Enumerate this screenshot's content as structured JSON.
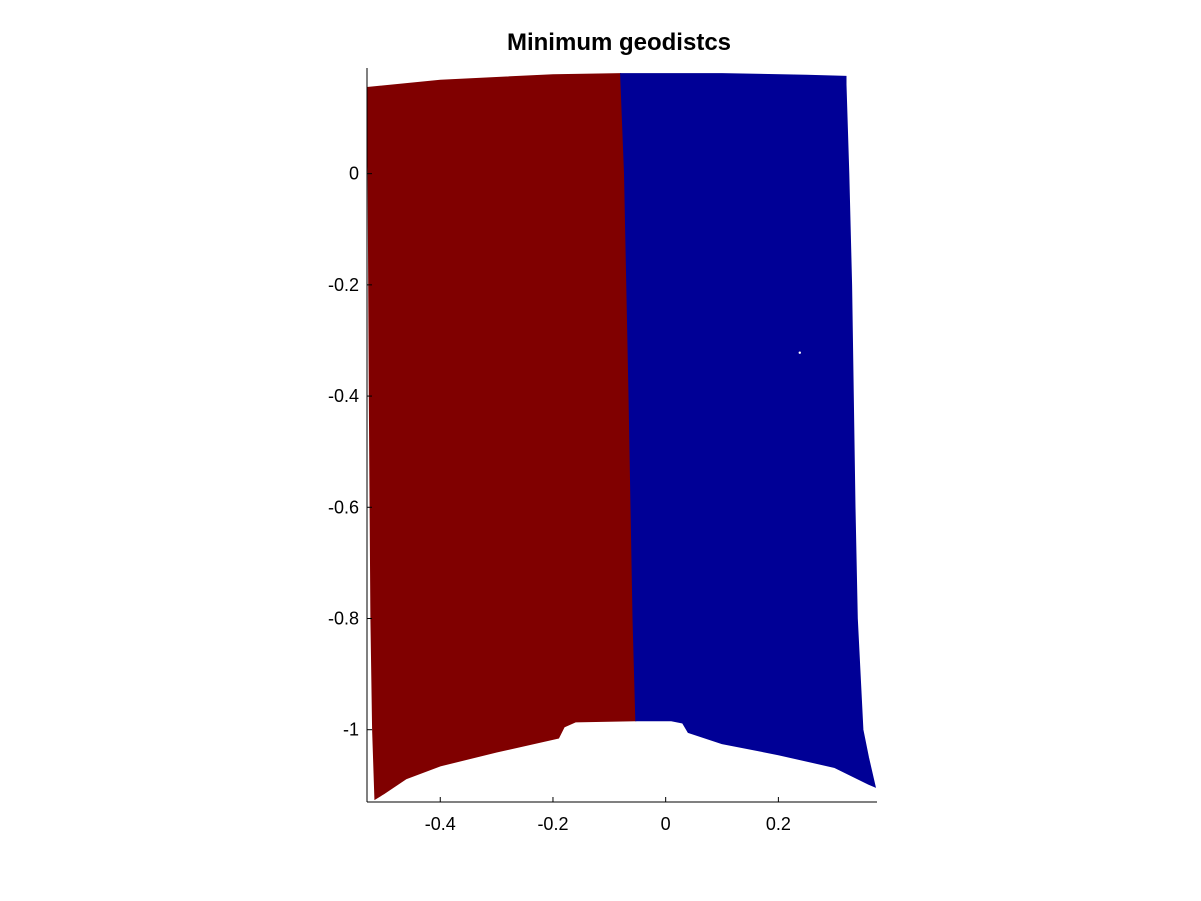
{
  "chart_data": {
    "type": "area",
    "title": "Minimum geodistcs",
    "xlabel": "",
    "ylabel": "",
    "xlim": [
      -0.53,
      0.375
    ],
    "ylim": [
      -1.13,
      0.19
    ],
    "xticks": [
      -0.4,
      -0.2,
      0,
      0.2
    ],
    "xtick_labels": [
      "-0.4",
      "-0.2",
      "0",
      "0.2"
    ],
    "yticks": [
      0,
      -0.2,
      -0.4,
      -0.6,
      -0.8,
      -1
    ],
    "ytick_labels": [
      "0",
      "-0.2",
      "-0.4",
      "-0.6",
      "-0.8",
      "-1"
    ],
    "grid": false,
    "regions": [
      {
        "color": "#800000",
        "outline": [
          [
            -0.53,
            0.155
          ],
          [
            -0.4,
            0.168
          ],
          [
            -0.2,
            0.178
          ],
          [
            -0.08,
            0.18
          ],
          [
            -0.073,
            0.0
          ],
          [
            -0.065,
            -0.4
          ],
          [
            -0.058,
            -0.8
          ],
          [
            -0.053,
            -0.984
          ],
          [
            -0.16,
            -0.986
          ],
          [
            -0.18,
            -0.995
          ],
          [
            -0.19,
            -1.015
          ],
          [
            -0.3,
            -1.04
          ],
          [
            -0.4,
            -1.065
          ],
          [
            -0.46,
            -1.088
          ],
          [
            -0.5,
            -1.115
          ],
          [
            -0.516,
            -1.125
          ],
          [
            -0.52,
            -1.0
          ],
          [
            -0.523,
            -0.8
          ],
          [
            -0.526,
            -0.4
          ],
          [
            -0.528,
            0.0
          ]
        ]
      },
      {
        "color": "#000096",
        "outline": [
          [
            -0.08,
            0.18
          ],
          [
            0.1,
            0.18
          ],
          [
            0.25,
            0.177
          ],
          [
            0.32,
            0.175
          ],
          [
            0.32,
            0.16
          ],
          [
            0.325,
            0.0
          ],
          [
            0.33,
            -0.2
          ],
          [
            0.333,
            -0.4
          ],
          [
            0.336,
            -0.6
          ],
          [
            0.34,
            -0.8
          ],
          [
            0.35,
            -1.0
          ],
          [
            0.36,
            -1.05
          ],
          [
            0.372,
            -1.103
          ],
          [
            0.36,
            -1.098
          ],
          [
            0.3,
            -1.068
          ],
          [
            0.2,
            -1.045
          ],
          [
            0.1,
            -1.025
          ],
          [
            0.04,
            -1.005
          ],
          [
            0.03,
            -0.988
          ],
          [
            0.01,
            -0.984
          ],
          [
            -0.053,
            -0.984
          ],
          [
            -0.058,
            -0.8
          ],
          [
            -0.065,
            -0.4
          ],
          [
            -0.073,
            0.0
          ]
        ]
      }
    ],
    "speckles": [
      {
        "x": 0.238,
        "y": -0.322,
        "color": "#ffffff"
      }
    ]
  }
}
